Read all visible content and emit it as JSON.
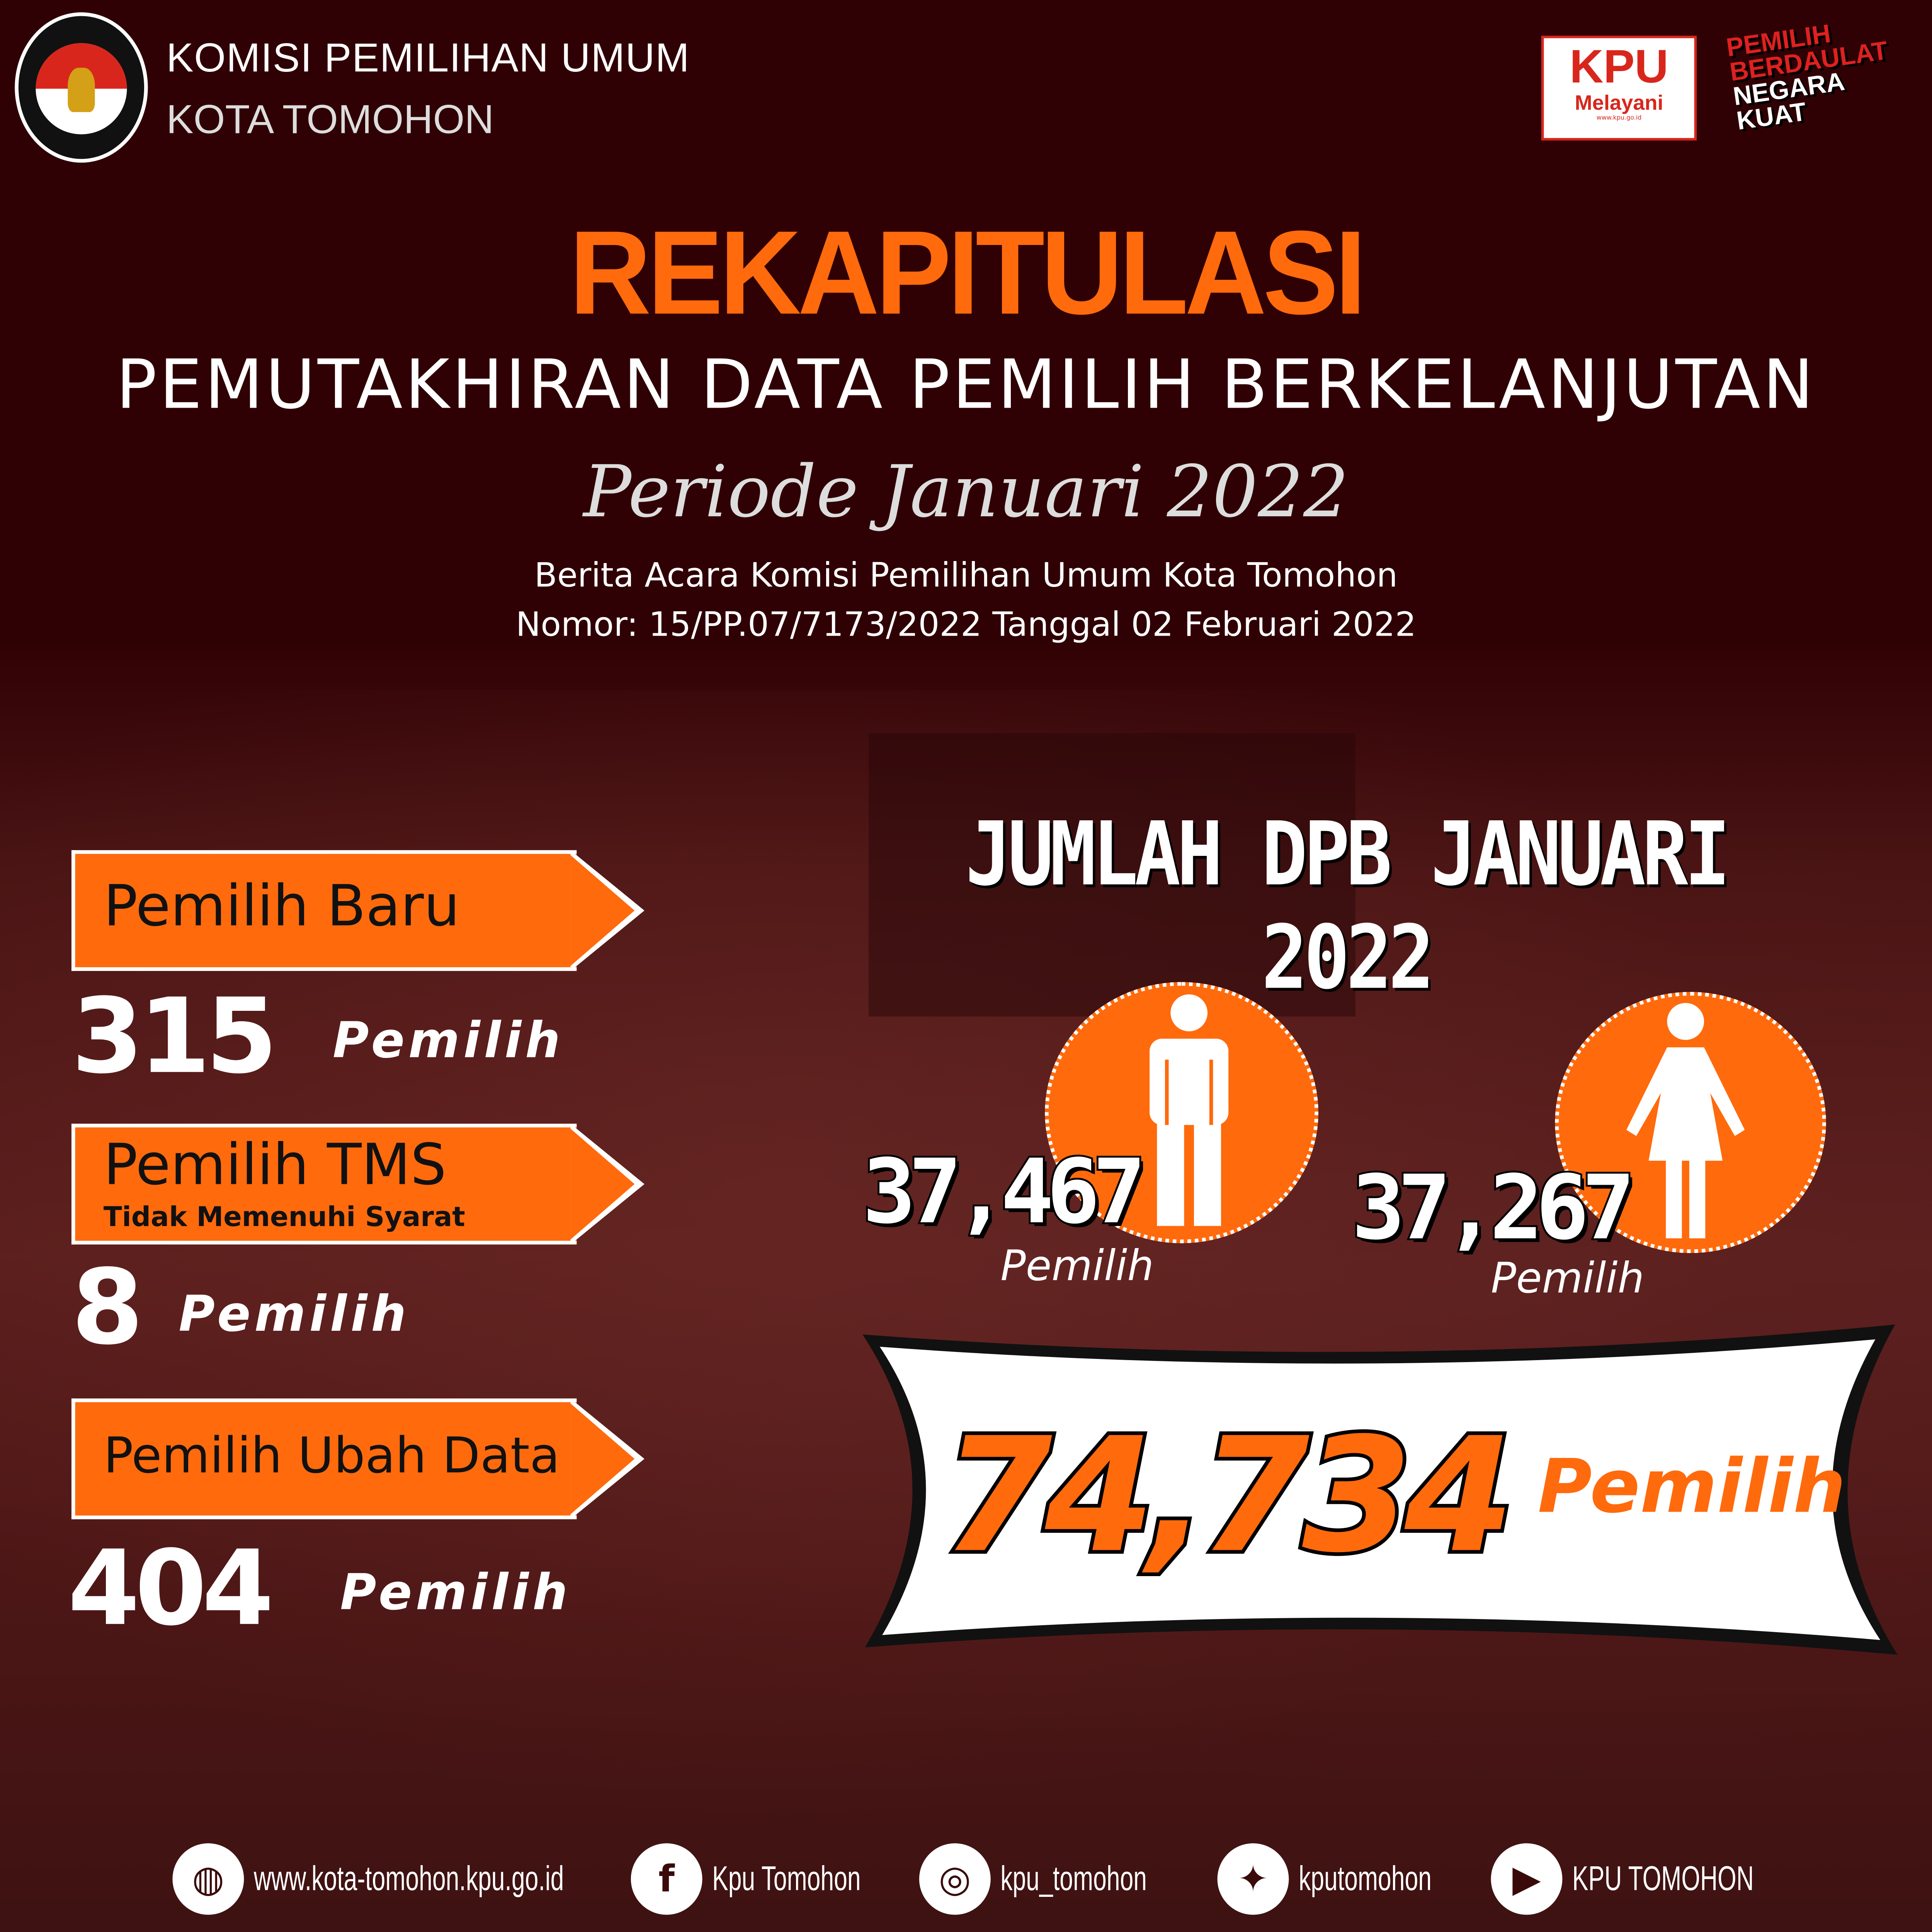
{
  "header": {
    "org": "KOMISI PEMILIHAN UMUM",
    "city": "KOTA TOMOHON",
    "logo_text": "KOMISI PEMILIHAN UMUM",
    "kpu_badge": {
      "main": "KPU",
      "sub": "Melayani",
      "url": "www.kpu.go.id"
    },
    "slogan": [
      "PEMILIH",
      "BERDAULAT",
      "NEGARA",
      "KUAT"
    ]
  },
  "title": "REKAPITULASI",
  "subtitle": "PEMUTAKHIRAN DATA PEMILIH BERKELANJUTAN",
  "period": "Periode Januari 2022",
  "berita_acara": [
    "Berita Acara Komisi Pemilihan Umum Kota Tomohon",
    "Nomor: 15/PP.07/7173/2022 Tanggal 02 Februari 2022"
  ],
  "stats": [
    {
      "label": "Pemilih Baru",
      "value": "315",
      "unit": "Pemilih"
    },
    {
      "label": "Pemilih TMS",
      "sublabel": "Tidak Memenuhi Syarat",
      "value": "8",
      "unit": "Pemilih"
    },
    {
      "label": "Pemilih Ubah Data",
      "value": "404",
      "unit": "Pemilih"
    }
  ],
  "dpb": {
    "heading": "JUMLAH DPB JANUARI 2022",
    "male": {
      "value": "37,467",
      "unit": "Pemilih",
      "icon": "male-icon"
    },
    "female": {
      "value": "37,267",
      "unit": "Pemilih",
      "icon": "female-icon"
    },
    "total": {
      "value": "74,734",
      "unit": "Pemilih"
    }
  },
  "colors": {
    "accent": "#ff6a0d",
    "background": "#300104"
  },
  "footer": [
    {
      "icon": "globe-icon",
      "text": "www.kota-tomohon.kpu.go.id"
    },
    {
      "icon": "facebook-icon",
      "text": "Kpu Tomohon"
    },
    {
      "icon": "instagram-icon",
      "text": "kpu_tomohon"
    },
    {
      "icon": "twitter-icon",
      "text": "kputomohon"
    },
    {
      "icon": "youtube-icon",
      "text": "KPU TOMOHON"
    }
  ]
}
